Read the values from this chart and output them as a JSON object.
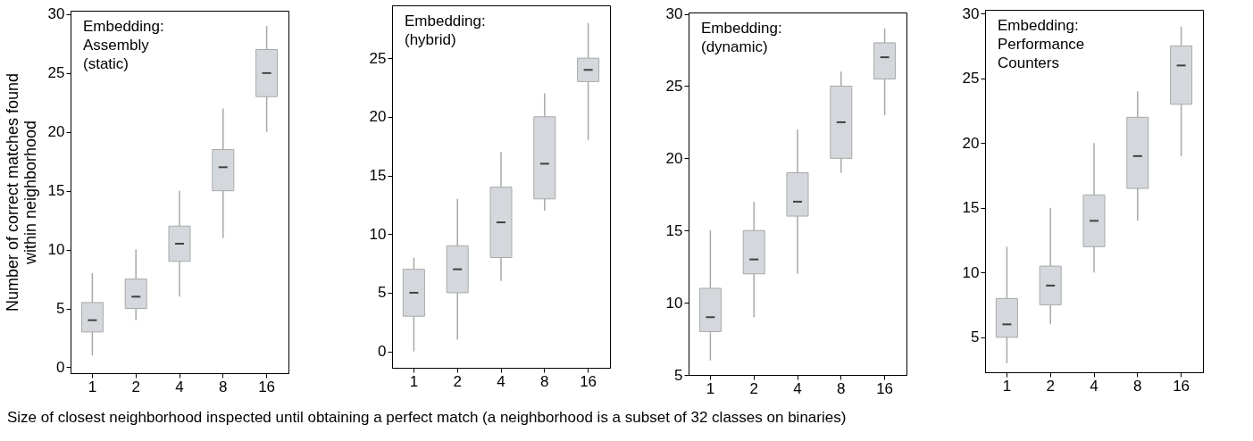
{
  "chart_data": [
    {
      "type": "box",
      "title": "Embedding:\nAssembly\n(static)",
      "ylabel": "Number of correct matches found\nwithin neighborhood",
      "xlabel": "Size of closest neighborhood inspected until obtaining a perfect match (a neighborhood is a subset of 32 classes on binaries)",
      "categories": [
        "1",
        "2",
        "4",
        "8",
        "16"
      ],
      "ylim": [
        -0.5,
        30.3
      ],
      "yticks": [
        0,
        5,
        10,
        15,
        20,
        25,
        30
      ],
      "grid": false,
      "series": [
        {
          "color": "#d4d8dc",
          "boxes": [
            {
              "low": 1,
              "q1": 3,
              "median": 4,
              "q3": 5.5,
              "high": 8
            },
            {
              "low": 4,
              "q1": 5,
              "median": 6,
              "q3": 7.5,
              "high": 10
            },
            {
              "low": 6,
              "q1": 9,
              "median": 10.5,
              "q3": 12,
              "high": 15
            },
            {
              "low": 11,
              "q1": 15,
              "median": 17,
              "q3": 18.5,
              "high": 22
            },
            {
              "low": 20,
              "q1": 23,
              "median": 25,
              "q3": 27,
              "high": 29
            }
          ]
        }
      ]
    },
    {
      "type": "box",
      "title": "Embedding:\n(hybrid)",
      "categories": [
        "1",
        "2",
        "4",
        "8",
        "16"
      ],
      "ylim": [
        -1.4,
        29.5
      ],
      "yticks": [
        0,
        5,
        10,
        15,
        20,
        25
      ],
      "grid": false,
      "series": [
        {
          "color": "#d4d8dc",
          "boxes": [
            {
              "low": 0,
              "q1": 3,
              "median": 5,
              "q3": 7,
              "high": 8
            },
            {
              "low": 1,
              "q1": 5,
              "median": 7,
              "q3": 9,
              "high": 13
            },
            {
              "low": 6,
              "q1": 8,
              "median": 11,
              "q3": 14,
              "high": 17
            },
            {
              "low": 12,
              "q1": 13,
              "median": 16,
              "q3": 20,
              "high": 22
            },
            {
              "low": 18,
              "q1": 23,
              "median": 24,
              "q3": 25,
              "high": 28
            }
          ]
        }
      ]
    },
    {
      "type": "box",
      "title": "Embedding:\n(dynamic)",
      "categories": [
        "1",
        "2",
        "4",
        "8",
        "16"
      ],
      "ylim": [
        5,
        30.1
      ],
      "yticks": [
        5,
        10,
        15,
        20,
        25,
        30
      ],
      "grid": false,
      "series": [
        {
          "color": "#d4d8dc",
          "boxes": [
            {
              "low": 6,
              "q1": 8,
              "median": 9,
              "q3": 11,
              "high": 15
            },
            {
              "low": 9,
              "q1": 12,
              "median": 13,
              "q3": 15,
              "high": 17
            },
            {
              "low": 12,
              "q1": 16,
              "median": 17,
              "q3": 19,
              "high": 22
            },
            {
              "low": 19,
              "q1": 20,
              "median": 22.5,
              "q3": 25,
              "high": 26
            },
            {
              "low": 23,
              "q1": 25.5,
              "median": 27,
              "q3": 28,
              "high": 29
            }
          ]
        }
      ]
    },
    {
      "type": "box",
      "title": "Embedding:\nPerformance\nCounters",
      "categories": [
        "1",
        "2",
        "4",
        "8",
        "16"
      ],
      "ylim": [
        2.3,
        30.3
      ],
      "yticks": [
        5,
        10,
        15,
        20,
        25,
        30
      ],
      "grid": false,
      "series": [
        {
          "color": "#d4d8dc",
          "boxes": [
            {
              "low": 3,
              "q1": 5,
              "median": 6,
              "q3": 8,
              "high": 12
            },
            {
              "low": 6,
              "q1": 7.5,
              "median": 9,
              "q3": 10.5,
              "high": 15
            },
            {
              "low": 10,
              "q1": 12,
              "median": 14,
              "q3": 16,
              "high": 20
            },
            {
              "low": 14,
              "q1": 16.5,
              "median": 19,
              "q3": 22,
              "high": 24
            },
            {
              "low": 19,
              "q1": 23,
              "median": 26,
              "q3": 27.5,
              "high": 29
            }
          ]
        }
      ]
    }
  ]
}
